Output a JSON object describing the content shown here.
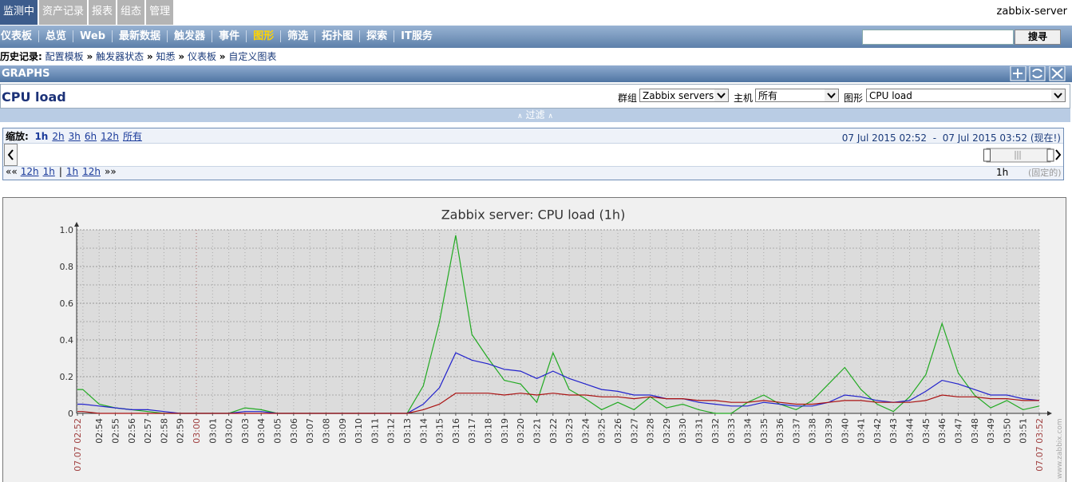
{
  "top_nav": {
    "tabs": [
      "监测中",
      "资产记录",
      "报表",
      "组态",
      "管理"
    ],
    "server": "zabbix-server"
  },
  "sub_nav": {
    "items": [
      "仪表板",
      "总览",
      "Web",
      "最新数据",
      "触发器",
      "事件",
      "图形",
      "筛选",
      "拓扑图",
      "探索",
      "IT服务"
    ],
    "search_button": "搜寻"
  },
  "breadcrumb": {
    "label": "历史记录:",
    "separator": "»",
    "items": [
      "配置模板",
      "触发器状态",
      "知悉",
      "仪表板",
      "自定义图表"
    ]
  },
  "section": {
    "title": "GRAPHS"
  },
  "page_title": "CPU load",
  "filters": {
    "group_label": "群组",
    "group": "Zabbix servers",
    "host_label": "主机",
    "host": "所有",
    "graph_label": "图形",
    "graph": "CPU load",
    "toggle": "过滤"
  },
  "zoom": {
    "label": "缩放:",
    "options": [
      "1h",
      "2h",
      "3h",
      "6h",
      "12h",
      "所有"
    ],
    "from": "07 Jul 2015 02:52",
    "dash": "-",
    "to": "07 Jul 2015 03:52 (现在!)",
    "back": [
      "««",
      "12h",
      "1h"
    ],
    "divider": "|",
    "forward": [
      "1h",
      "12h",
      "»»"
    ],
    "period": "1h",
    "fixed": "(固定的)"
  },
  "chart_data": {
    "type": "line",
    "title": "Zabbix server: CPU load (1h)",
    "watermark": "www.zabbix.com",
    "categories": [
      "07.07 02:52",
      null,
      "02:54",
      "02:55",
      "02:56",
      "02:57",
      "02:58",
      "02:59",
      "03:00",
      "03:01",
      "03:02",
      "03:03",
      "03:04",
      "03:05",
      "03:06",
      "03:07",
      "03:08",
      "03:09",
      "03:10",
      "03:11",
      "03:12",
      "03:13",
      "03:14",
      "03:15",
      "03:16",
      "03:17",
      "03:18",
      "03:19",
      "03:20",
      "03:21",
      "03:22",
      "03:23",
      "03:24",
      "03:25",
      "03:26",
      "03:27",
      "03:28",
      "03:29",
      "03:30",
      "03:31",
      "03:32",
      "03:33",
      "03:34",
      "03:35",
      "03:36",
      "03:37",
      "03:38",
      "03:39",
      "03:40",
      "03:41",
      "03:42",
      "03:43",
      "03:44",
      "03:45",
      "03:46",
      "03:47",
      "03:48",
      "03:49",
      "03:50",
      "03:51",
      "07.07 03:52"
    ],
    "series": [
      {
        "color": "#22aa22",
        "values": [
          0.13,
          0.13,
          0.05,
          0.03,
          0.02,
          0.01,
          0,
          0,
          0,
          0,
          0,
          0.03,
          0.02,
          0,
          0,
          0,
          0,
          0,
          0,
          0,
          0,
          0,
          0.15,
          0.5,
          0.97,
          0.43,
          0.3,
          0.18,
          0.16,
          0.06,
          0.33,
          0.13,
          0.08,
          0.02,
          0.06,
          0.02,
          0.09,
          0.03,
          0.05,
          0.02,
          0,
          0,
          0.06,
          0.1,
          0.05,
          0.02,
          0.07,
          0.16,
          0.25,
          0.13,
          0.05,
          0.01,
          0.09,
          0.21,
          0.49,
          0.22,
          0.1,
          0.03,
          0.07,
          0.02,
          0.04
        ]
      },
      {
        "color": "#2222cc",
        "values": [
          0.05,
          0.05,
          0.04,
          0.03,
          0.02,
          0.02,
          0.01,
          0,
          0,
          0,
          0,
          0.01,
          0.01,
          0,
          0,
          0,
          0,
          0,
          0,
          0,
          0,
          0,
          0.05,
          0.14,
          0.33,
          0.29,
          0.27,
          0.24,
          0.23,
          0.19,
          0.23,
          0.19,
          0.16,
          0.13,
          0.12,
          0.1,
          0.1,
          0.08,
          0.08,
          0.06,
          0.05,
          0.04,
          0.04,
          0.06,
          0.05,
          0.04,
          0.04,
          0.06,
          0.1,
          0.09,
          0.07,
          0.06,
          0.07,
          0.12,
          0.18,
          0.16,
          0.13,
          0.1,
          0.1,
          0.08,
          0.07
        ]
      },
      {
        "color": "#aa1111",
        "values": [
          0.01,
          0.01,
          0,
          0,
          0,
          0,
          0,
          0,
          0,
          0,
          0,
          0,
          0,
          0,
          0,
          0,
          0,
          0,
          0,
          0,
          0,
          0,
          0.02,
          0.05,
          0.11,
          0.11,
          0.11,
          0.1,
          0.11,
          0.1,
          0.11,
          0.1,
          0.1,
          0.09,
          0.09,
          0.08,
          0.09,
          0.08,
          0.08,
          0.07,
          0.07,
          0.06,
          0.06,
          0.07,
          0.06,
          0.05,
          0.05,
          0.06,
          0.07,
          0.07,
          0.06,
          0.06,
          0.06,
          0.07,
          0.1,
          0.09,
          0.09,
          0.08,
          0.08,
          0.07,
          0.07
        ]
      }
    ],
    "ylim": [
      0,
      1
    ],
    "yticks": [
      0,
      0.2,
      0.4,
      0.6,
      0.8,
      {
        "value": 1,
        "label": "1.0"
      }
    ],
    "grid": true
  }
}
